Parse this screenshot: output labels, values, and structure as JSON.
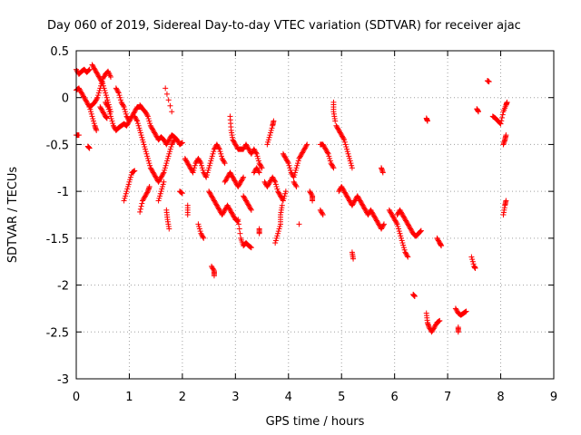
{
  "chart_data": {
    "type": "scatter",
    "title": "Day 060 of 2019, Sidereal Day-to-day VTEC variation (SDTVAR) for receiver ajac",
    "xlabel": "GPS time / hours",
    "ylabel": "SDTVAR / TECUs",
    "xlim": [
      0,
      9
    ],
    "ylim": [
      -3,
      0.5
    ],
    "xticks": [
      0,
      1,
      2,
      3,
      4,
      5,
      6,
      7,
      8,
      9
    ],
    "yticks": [
      0.5,
      0,
      -0.5,
      -1,
      -1.5,
      -2,
      -2.5,
      -3
    ],
    "ytick_labels": [
      "0.5",
      "0",
      "-0.5",
      "-1",
      "-1.5",
      "-2",
      "-2.5",
      "-3"
    ],
    "grid": true,
    "marker": "+",
    "color": "#ff0000",
    "segments": [
      [
        [
          0.0,
          0.3
        ],
        [
          0.05,
          0.25
        ],
        [
          0.1,
          0.28
        ],
        [
          0.15,
          0.3
        ],
        [
          0.2,
          0.27
        ],
        [
          0.25,
          0.3
        ]
      ],
      [
        [
          0.3,
          0.35
        ],
        [
          0.35,
          0.3
        ],
        [
          0.4,
          0.25
        ],
        [
          0.45,
          0.2
        ],
        [
          0.5,
          0.15
        ],
        [
          0.55,
          0.05
        ],
        [
          0.6,
          -0.05
        ],
        [
          0.65,
          -0.15
        ]
      ],
      [
        [
          0.0,
          0.08
        ],
        [
          0.05,
          0.1
        ],
        [
          0.1,
          0.05
        ],
        [
          0.15,
          0.0
        ],
        [
          0.2,
          -0.05
        ],
        [
          0.25,
          -0.1
        ],
        [
          0.3,
          -0.08
        ],
        [
          0.35,
          -0.05
        ],
        [
          0.4,
          0.0
        ],
        [
          0.45,
          0.1
        ],
        [
          0.5,
          0.2
        ],
        [
          0.55,
          0.25
        ],
        [
          0.6,
          0.28
        ],
        [
          0.65,
          0.22
        ]
      ],
      [
        [
          0.25,
          -0.1
        ],
        [
          0.3,
          -0.2
        ],
        [
          0.35,
          -0.3
        ],
        [
          0.38,
          -0.35
        ]
      ],
      [
        [
          0.45,
          -0.1
        ],
        [
          0.5,
          -0.15
        ],
        [
          0.55,
          -0.2
        ],
        [
          0.58,
          -0.22
        ]
      ],
      [
        [
          0.0,
          -0.4
        ],
        [
          0.05,
          -0.4
        ]
      ],
      [
        [
          0.22,
          -0.52
        ],
        [
          0.25,
          -0.54
        ]
      ],
      [
        [
          0.55,
          -0.05
        ],
        [
          0.6,
          -0.1
        ],
        [
          0.65,
          -0.2
        ],
        [
          0.7,
          -0.3
        ],
        [
          0.75,
          -0.35
        ],
        [
          0.8,
          -0.32
        ],
        [
          0.85,
          -0.3
        ],
        [
          0.9,
          -0.28
        ],
        [
          0.95,
          -0.3
        ],
        [
          1.0,
          -0.25
        ],
        [
          1.05,
          -0.2
        ],
        [
          1.1,
          -0.15
        ],
        [
          1.15,
          -0.1
        ],
        [
          1.2,
          -0.1
        ]
      ],
      [
        [
          0.75,
          0.1
        ],
        [
          0.8,
          0.05
        ],
        [
          0.85,
          -0.05
        ],
        [
          0.9,
          -0.1
        ],
        [
          0.95,
          -0.2
        ],
        [
          1.0,
          -0.25
        ]
      ],
      [
        [
          0.9,
          -1.1
        ],
        [
          0.95,
          -1.0
        ],
        [
          1.0,
          -0.9
        ],
        [
          1.05,
          -0.8
        ],
        [
          1.1,
          -0.78
        ]
      ],
      [
        [
          1.1,
          -0.2
        ],
        [
          1.15,
          -0.25
        ],
        [
          1.2,
          -0.35
        ],
        [
          1.25,
          -0.45
        ],
        [
          1.3,
          -0.55
        ],
        [
          1.35,
          -0.65
        ],
        [
          1.4,
          -0.75
        ],
        [
          1.45,
          -0.8
        ],
        [
          1.5,
          -0.85
        ],
        [
          1.55,
          -0.9
        ],
        [
          1.6,
          -0.85
        ],
        [
          1.65,
          -0.8
        ],
        [
          1.7,
          -0.7
        ],
        [
          1.75,
          -0.6
        ],
        [
          1.8,
          -0.5
        ],
        [
          1.85,
          -0.45
        ]
      ],
      [
        [
          1.2,
          -0.08
        ],
        [
          1.25,
          -0.12
        ],
        [
          1.3,
          -0.15
        ],
        [
          1.35,
          -0.2
        ],
        [
          1.4,
          -0.3
        ],
        [
          1.45,
          -0.35
        ],
        [
          1.5,
          -0.4
        ],
        [
          1.55,
          -0.45
        ],
        [
          1.6,
          -0.42
        ],
        [
          1.65,
          -0.45
        ],
        [
          1.7,
          -0.5
        ],
        [
          1.75,
          -0.45
        ],
        [
          1.8,
          -0.4
        ],
        [
          1.85,
          -0.42
        ],
        [
          1.9,
          -0.45
        ],
        [
          1.95,
          -0.5
        ],
        [
          2.0,
          -0.48
        ]
      ],
      [
        [
          1.2,
          -1.22
        ],
        [
          1.25,
          -1.1
        ],
        [
          1.3,
          -1.05
        ],
        [
          1.35,
          -1.0
        ],
        [
          1.38,
          -0.95
        ]
      ],
      [
        [
          1.55,
          -1.1
        ],
        [
          1.6,
          -1.0
        ],
        [
          1.65,
          -0.9
        ]
      ],
      [
        [
          1.7,
          -1.2
        ],
        [
          1.72,
          -1.3
        ],
        [
          1.75,
          -1.4
        ]
      ],
      [
        [
          1.68,
          0.1
        ],
        [
          1.8,
          -0.15
        ]
      ],
      [
        [
          1.95,
          -1.0
        ],
        [
          2.0,
          -1.02
        ]
      ],
      [
        [
          2.05,
          -0.65
        ],
        [
          2.1,
          -0.7
        ],
        [
          2.15,
          -0.75
        ],
        [
          2.2,
          -0.8
        ],
        [
          2.25,
          -0.7
        ],
        [
          2.3,
          -0.65
        ],
        [
          2.35,
          -0.7
        ],
        [
          2.4,
          -0.8
        ],
        [
          2.45,
          -0.85
        ],
        [
          2.5,
          -0.75
        ],
        [
          2.55,
          -0.65
        ],
        [
          2.6,
          -0.55
        ],
        [
          2.65,
          -0.5
        ],
        [
          2.7,
          -0.55
        ],
        [
          2.75,
          -0.65
        ],
        [
          2.8,
          -0.7
        ]
      ],
      [
        [
          2.1,
          -1.15
        ],
        [
          2.1,
          -1.25
        ]
      ],
      [
        [
          2.3,
          -1.35
        ],
        [
          2.35,
          -1.45
        ],
        [
          2.4,
          -1.5
        ]
      ],
      [
        [
          2.5,
          -1.0
        ],
        [
          2.55,
          -1.05
        ],
        [
          2.6,
          -1.1
        ],
        [
          2.65,
          -1.15
        ],
        [
          2.7,
          -1.2
        ],
        [
          2.75,
          -1.25
        ],
        [
          2.8,
          -1.2
        ],
        [
          2.85,
          -1.15
        ],
        [
          2.9,
          -1.2
        ],
        [
          2.95,
          -1.25
        ],
        [
          3.0,
          -1.3
        ],
        [
          3.05,
          -1.32
        ]
      ],
      [
        [
          2.55,
          -1.8
        ],
        [
          2.6,
          -1.85
        ],
        [
          2.6,
          -1.9
        ]
      ],
      [
        [
          2.8,
          -0.9
        ],
        [
          2.85,
          -0.85
        ],
        [
          2.9,
          -0.8
        ],
        [
          2.95,
          -0.85
        ],
        [
          3.0,
          -0.9
        ],
        [
          3.05,
          -0.95
        ],
        [
          3.1,
          -0.9
        ],
        [
          3.15,
          -0.85
        ]
      ],
      [
        [
          2.9,
          -0.2
        ],
        [
          2.92,
          -0.35
        ],
        [
          2.95,
          -0.45
        ],
        [
          3.0,
          -0.5
        ],
        [
          3.05,
          -0.55
        ],
        [
          3.1,
          -0.55
        ],
        [
          3.15,
          -0.55
        ],
        [
          3.2,
          -0.5
        ],
        [
          3.25,
          -0.55
        ],
        [
          3.3,
          -0.6
        ],
        [
          3.35,
          -0.55
        ],
        [
          3.4,
          -0.6
        ],
        [
          3.45,
          -0.7
        ],
        [
          3.5,
          -0.75
        ]
      ],
      [
        [
          3.05,
          -1.3
        ],
        [
          3.1,
          -1.5
        ],
        [
          3.15,
          -1.58
        ],
        [
          3.2,
          -1.55
        ],
        [
          3.25,
          -1.58
        ],
        [
          3.3,
          -1.6
        ]
      ],
      [
        [
          3.15,
          -1.05
        ],
        [
          3.2,
          -1.1
        ],
        [
          3.25,
          -1.15
        ],
        [
          3.3,
          -1.2
        ]
      ],
      [
        [
          3.35,
          -0.8
        ],
        [
          3.4,
          -0.75
        ],
        [
          3.45,
          -0.8
        ]
      ],
      [
        [
          3.45,
          -1.4
        ],
        [
          3.45,
          -1.45
        ]
      ],
      [
        [
          3.55,
          -0.9
        ],
        [
          3.6,
          -0.95
        ],
        [
          3.65,
          -0.9
        ],
        [
          3.7,
          -0.85
        ],
        [
          3.75,
          -0.9
        ],
        [
          3.8,
          -1.0
        ],
        [
          3.85,
          -1.05
        ],
        [
          3.9,
          -1.1
        ],
        [
          3.95,
          -1.0
        ]
      ],
      [
        [
          3.6,
          -0.5
        ],
        [
          3.65,
          -0.4
        ],
        [
          3.7,
          -0.3
        ],
        [
          3.72,
          -0.25
        ]
      ],
      [
        [
          3.75,
          -1.55
        ],
        [
          3.8,
          -1.45
        ],
        [
          3.85,
          -1.35
        ],
        [
          3.85,
          -1.25
        ],
        [
          3.88,
          -1.15
        ]
      ],
      [
        [
          3.9,
          -0.6
        ],
        [
          3.95,
          -0.65
        ],
        [
          4.0,
          -0.7
        ],
        [
          4.05,
          -0.8
        ],
        [
          4.1,
          -0.85
        ],
        [
          4.15,
          -0.75
        ],
        [
          4.2,
          -0.65
        ],
        [
          4.25,
          -0.6
        ],
        [
          4.3,
          -0.55
        ],
        [
          4.35,
          -0.5
        ]
      ],
      [
        [
          4.1,
          -0.9
        ],
        [
          4.15,
          -0.95
        ]
      ],
      [
        [
          4.2,
          -1.35
        ]
      ],
      [
        [
          4.4,
          -1.0
        ],
        [
          4.45,
          -1.05
        ],
        [
          4.45,
          -1.1
        ]
      ],
      [
        [
          4.6,
          -1.2
        ],
        [
          4.65,
          -1.25
        ]
      ],
      [
        [
          4.6,
          -0.5
        ],
        [
          4.65,
          -0.5
        ],
        [
          4.7,
          -0.55
        ],
        [
          4.75,
          -0.6
        ],
        [
          4.8,
          -0.7
        ],
        [
          4.85,
          -0.75
        ]
      ],
      [
        [
          4.85,
          -0.05
        ],
        [
          4.85,
          -0.15
        ],
        [
          4.88,
          -0.25
        ]
      ],
      [
        [
          4.9,
          -0.3
        ],
        [
          4.95,
          -0.35
        ],
        [
          5.0,
          -0.4
        ],
        [
          5.05,
          -0.45
        ],
        [
          5.1,
          -0.55
        ],
        [
          5.15,
          -0.65
        ],
        [
          5.2,
          -0.75
        ]
      ],
      [
        [
          4.95,
          -1.0
        ],
        [
          5.0,
          -0.95
        ],
        [
          5.05,
          -1.0
        ],
        [
          5.1,
          -1.05
        ],
        [
          5.15,
          -1.1
        ],
        [
          5.2,
          -1.15
        ],
        [
          5.25,
          -1.1
        ],
        [
          5.3,
          -1.05
        ],
        [
          5.35,
          -1.1
        ],
        [
          5.4,
          -1.15
        ],
        [
          5.45,
          -1.2
        ],
        [
          5.5,
          -1.25
        ],
        [
          5.55,
          -1.2
        ],
        [
          5.6,
          -1.25
        ],
        [
          5.65,
          -1.3
        ],
        [
          5.7,
          -1.35
        ],
        [
          5.75,
          -1.4
        ],
        [
          5.8,
          -1.35
        ]
      ],
      [
        [
          5.2,
          -1.65
        ],
        [
          5.22,
          -1.72
        ]
      ],
      [
        [
          5.75,
          -0.75
        ],
        [
          5.78,
          -0.8
        ]
      ],
      [
        [
          5.9,
          -1.2
        ],
        [
          5.95,
          -1.25
        ],
        [
          6.0,
          -1.3
        ],
        [
          6.05,
          -1.35
        ],
        [
          6.1,
          -1.45
        ],
        [
          6.15,
          -1.55
        ],
        [
          6.2,
          -1.65
        ],
        [
          6.25,
          -1.7
        ]
      ],
      [
        [
          6.05,
          -1.25
        ],
        [
          6.1,
          -1.2
        ],
        [
          6.15,
          -1.25
        ],
        [
          6.2,
          -1.3
        ],
        [
          6.25,
          -1.35
        ],
        [
          6.3,
          -1.4
        ],
        [
          6.35,
          -1.45
        ],
        [
          6.4,
          -1.48
        ],
        [
          6.45,
          -1.45
        ],
        [
          6.5,
          -1.42
        ]
      ],
      [
        [
          6.35,
          -2.1
        ],
        [
          6.38,
          -2.12
        ]
      ],
      [
        [
          6.6,
          -0.22
        ],
        [
          6.62,
          -0.25
        ]
      ],
      [
        [
          6.6,
          -2.3
        ],
        [
          6.62,
          -2.4
        ],
        [
          6.65,
          -2.45
        ],
        [
          6.7,
          -2.5
        ],
        [
          6.75,
          -2.45
        ],
        [
          6.8,
          -2.4
        ],
        [
          6.85,
          -2.38
        ]
      ],
      [
        [
          6.8,
          -1.5
        ],
        [
          6.85,
          -1.55
        ],
        [
          6.88,
          -1.58
        ]
      ],
      [
        [
          7.15,
          -2.25
        ],
        [
          7.2,
          -2.3
        ],
        [
          7.25,
          -2.32
        ],
        [
          7.3,
          -2.3
        ],
        [
          7.35,
          -2.28
        ]
      ],
      [
        [
          7.2,
          -2.45
        ],
        [
          7.2,
          -2.5
        ]
      ],
      [
        [
          7.45,
          -1.7
        ],
        [
          7.5,
          -1.8
        ],
        [
          7.52,
          -1.82
        ]
      ],
      [
        [
          7.55,
          -0.12
        ],
        [
          7.58,
          -0.15
        ]
      ],
      [
        [
          7.75,
          0.18
        ],
        [
          7.78,
          0.17
        ]
      ],
      [
        [
          7.85,
          -0.2
        ],
        [
          7.9,
          -0.22
        ],
        [
          7.95,
          -0.25
        ],
        [
          8.0,
          -0.28
        ],
        [
          8.05,
          -0.15
        ],
        [
          8.1,
          -0.08
        ],
        [
          8.12,
          -0.05
        ]
      ],
      [
        [
          8.05,
          -0.5
        ],
        [
          8.08,
          -0.45
        ],
        [
          8.1,
          -0.4
        ]
      ],
      [
        [
          8.05,
          -1.25
        ],
        [
          8.08,
          -1.15
        ],
        [
          8.1,
          -1.1
        ]
      ]
    ]
  }
}
